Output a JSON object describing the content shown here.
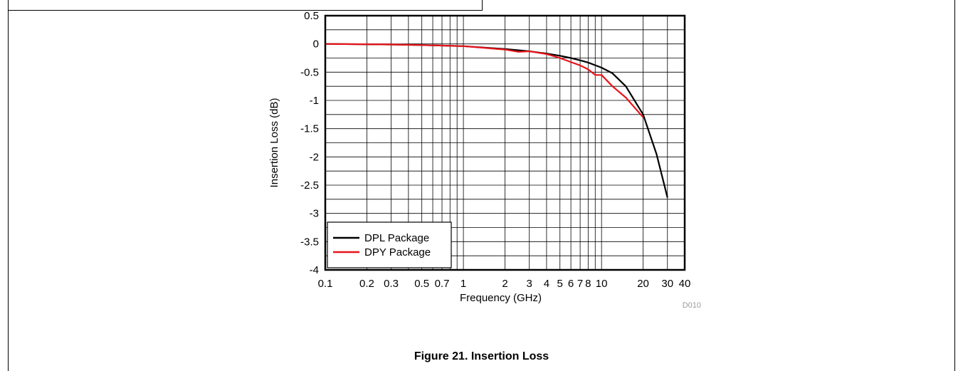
{
  "figure_caption": "Figure 21. Insertion Loss",
  "figure_code": "D010",
  "chart_data": {
    "type": "line",
    "xlabel": "Frequency (GHz)",
    "ylabel": "Insertion Loss (dB)",
    "x_scale": "log",
    "xlim": [
      0.1,
      40
    ],
    "ylim": [
      -4,
      0.5
    ],
    "x_ticks": [
      0.1,
      0.2,
      0.3,
      0.5,
      0.7,
      1,
      2,
      3,
      4,
      5,
      6,
      7,
      8,
      10,
      20,
      30,
      40
    ],
    "x_tick_labels": [
      "0.1",
      "0.2",
      "0.3",
      "0.5",
      "0.7",
      "1",
      "2",
      "3",
      "4",
      "5",
      "6",
      "7",
      "8",
      "10",
      "20",
      "30",
      "40"
    ],
    "y_ticks": [
      0.5,
      0,
      -0.5,
      -1,
      -1.5,
      -2,
      -2.5,
      -3,
      -3.5,
      -4
    ],
    "y_tick_labels": [
      "0.5",
      "0",
      "-0.5",
      "-1",
      "-1.5",
      "-2",
      "-2.5",
      "-3",
      "-3.5",
      "-4"
    ],
    "grid": true,
    "legend_position": "bottom-left",
    "series": [
      {
        "name": "DPL Package",
        "color": "#000000",
        "x": [
          0.1,
          0.3,
          0.5,
          1,
          2,
          3,
          4,
          5,
          6,
          7,
          8,
          10,
          12,
          15,
          20,
          25,
          30
        ],
        "y": [
          0,
          -0.01,
          -0.02,
          -0.04,
          -0.09,
          -0.13,
          -0.17,
          -0.21,
          -0.25,
          -0.29,
          -0.33,
          -0.42,
          -0.52,
          -0.75,
          -1.25,
          -1.95,
          -2.72
        ]
      },
      {
        "name": "DPY Package",
        "color": "#e8141a",
        "x": [
          0.1,
          0.3,
          0.5,
          1,
          2,
          2.5,
          3,
          4,
          5,
          6,
          7,
          8,
          9,
          10,
          12,
          15,
          20
        ],
        "y": [
          0,
          -0.01,
          -0.02,
          -0.04,
          -0.1,
          -0.14,
          -0.13,
          -0.18,
          -0.25,
          -0.32,
          -0.38,
          -0.45,
          -0.55,
          -0.55,
          -0.75,
          -0.95,
          -1.3
        ]
      }
    ]
  }
}
